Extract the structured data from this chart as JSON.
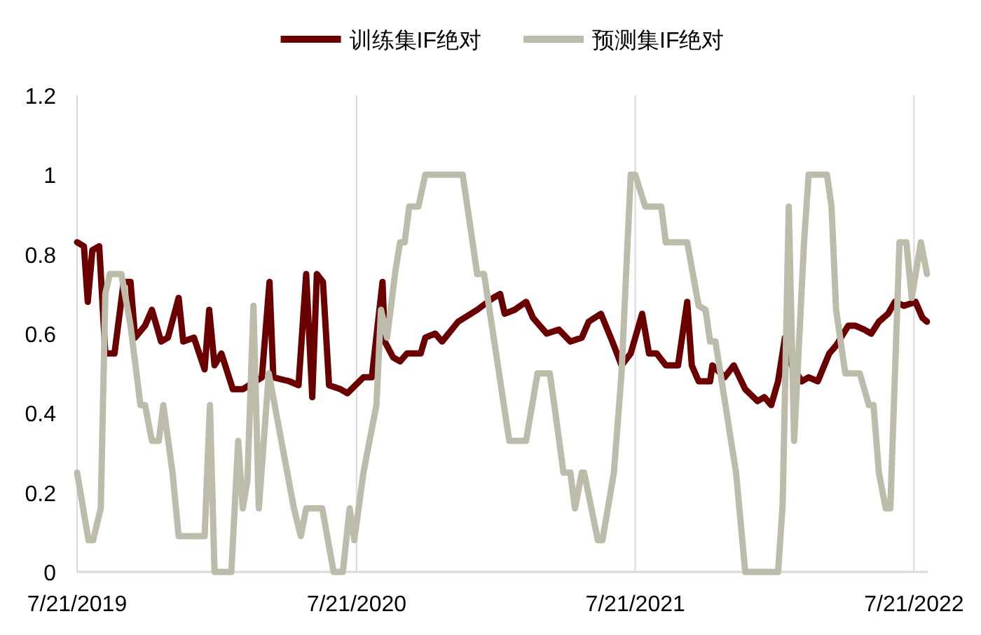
{
  "chart_data": {
    "type": "line",
    "legend": "top",
    "grid": "x",
    "marker": "none",
    "line_style": "solid",
    "xlim": [
      "2019-07-21",
      "2022-08-08"
    ],
    "xticks": [
      {
        "value": "2019-07-21",
        "label": "7/21/2019"
      },
      {
        "value": "2020-07-21",
        "label": "7/21/2020"
      },
      {
        "value": "2021-07-21",
        "label": "7/21/2021"
      },
      {
        "value": "2022-07-21",
        "label": "7/21/2022"
      }
    ],
    "ylim": [
      0,
      1.2
    ],
    "yticks": [
      0,
      0.2,
      0.4,
      0.6,
      0.8,
      1,
      1.2
    ],
    "series": [
      {
        "name": "训练集IF绝对",
        "color": "#6b0000",
        "x": [
          "2019-07-21",
          "2019-07-30",
          "2019-08-04",
          "2019-08-10",
          "2019-08-19",
          "2019-08-27",
          "2019-09-08",
          "2019-09-20",
          "2019-09-29",
          "2019-10-05",
          "2019-10-18",
          "2019-10-27",
          "2019-11-08",
          "2019-11-17",
          "2019-12-01",
          "2019-12-07",
          "2019-12-21",
          "2020-01-04",
          "2020-01-10",
          "2020-01-17",
          "2020-01-26",
          "2020-02-10",
          "2020-02-23",
          "2020-03-19",
          "2020-03-29",
          "2020-04-03",
          "2020-04-24",
          "2020-05-06",
          "2020-05-16",
          "2020-05-24",
          "2020-05-30",
          "2020-06-07",
          "2020-06-15",
          "2020-06-30",
          "2020-07-09",
          "2020-07-30",
          "2020-08-10",
          "2020-08-24",
          "2020-08-27",
          "2020-09-07",
          "2020-09-16",
          "2020-09-25",
          "2020-10-13",
          "2020-10-19",
          "2020-11-01",
          "2020-11-10",
          "2020-12-01",
          "2020-12-26",
          "2021-01-16",
          "2021-01-25",
          "2021-01-31",
          "2021-02-13",
          "2021-02-28",
          "2021-03-09",
          "2021-03-27",
          "2021-04-12",
          "2021-04-27",
          "2021-05-12",
          "2021-05-21",
          "2021-06-06",
          "2021-06-21",
          "2021-07-03",
          "2021-07-15",
          "2021-07-30",
          "2021-08-08",
          "2021-08-18",
          "2021-08-30",
          "2021-09-15",
          "2021-09-27",
          "2021-10-03",
          "2021-10-12",
          "2021-10-27",
          "2021-10-30",
          "2021-11-15",
          "2021-11-27",
          "2021-12-12",
          "2021-12-28",
          "2022-01-06",
          "2022-01-15",
          "2022-01-24",
          "2022-02-02",
          "2022-02-11",
          "2022-02-24",
          "2022-03-05",
          "2022-03-17",
          "2022-04-01",
          "2022-04-10",
          "2022-04-26",
          "2022-05-05",
          "2022-05-17",
          "2022-05-26",
          "2022-06-05",
          "2022-06-17",
          "2022-06-26",
          "2022-07-08",
          "2022-07-23",
          "2022-08-01",
          "2022-08-07"
        ],
        "values": [
          0.83,
          0.82,
          0.68,
          0.81,
          0.82,
          0.55,
          0.55,
          0.73,
          0.73,
          0.59,
          0.62,
          0.66,
          0.58,
          0.59,
          0.69,
          0.58,
          0.59,
          0.51,
          0.66,
          0.52,
          0.55,
          0.46,
          0.46,
          0.49,
          0.73,
          0.49,
          0.48,
          0.47,
          0.75,
          0.44,
          0.75,
          0.73,
          0.47,
          0.46,
          0.45,
          0.49,
          0.49,
          0.73,
          0.58,
          0.54,
          0.53,
          0.55,
          0.55,
          0.59,
          0.6,
          0.58,
          0.63,
          0.66,
          0.69,
          0.7,
          0.65,
          0.66,
          0.68,
          0.64,
          0.6,
          0.61,
          0.58,
          0.59,
          0.63,
          0.65,
          0.58,
          0.52,
          0.55,
          0.65,
          0.55,
          0.55,
          0.52,
          0.52,
          0.68,
          0.52,
          0.48,
          0.48,
          0.52,
          0.49,
          0.52,
          0.46,
          0.43,
          0.44,
          0.42,
          0.48,
          0.59,
          0.52,
          0.48,
          0.49,
          0.48,
          0.55,
          0.57,
          0.62,
          0.62,
          0.61,
          0.6,
          0.63,
          0.65,
          0.68,
          0.67,
          0.68,
          0.64,
          0.63
        ]
      },
      {
        "name": "预测集IF绝对",
        "color": "#bdbcaa",
        "x": [
          "2019-07-21",
          "2019-08-05",
          "2019-08-11",
          "2019-08-21",
          "2019-08-27",
          "2019-09-02",
          "2019-09-17",
          "2019-09-29",
          "2019-10-12",
          "2019-10-18",
          "2019-10-27",
          "2019-11-05",
          "2019-11-11",
          "2019-11-23",
          "2019-12-01",
          "2020-01-04",
          "2020-01-11",
          "2020-01-17",
          "2020-02-08",
          "2020-02-17",
          "2020-02-23",
          "2020-02-29",
          "2020-03-08",
          "2020-03-15",
          "2020-03-28",
          "2020-04-30",
          "2020-05-09",
          "2020-05-16",
          "2020-06-06",
          "2020-06-21",
          "2020-07-03",
          "2020-07-12",
          "2020-07-18",
          "2020-07-30",
          "2020-08-16",
          "2020-08-22",
          "2020-08-30",
          "2020-09-10",
          "2020-09-16",
          "2020-09-22",
          "2020-09-28",
          "2020-10-10",
          "2020-10-19",
          "2020-12-07",
          "2020-12-26",
          "2021-01-04",
          "2021-02-06",
          "2021-02-28",
          "2021-03-15",
          "2021-03-31",
          "2021-04-06",
          "2021-04-18",
          "2021-04-27",
          "2021-05-03",
          "2021-05-12",
          "2021-05-15",
          "2021-06-02",
          "2021-06-08",
          "2021-06-23",
          "2021-07-03",
          "2021-07-15",
          "2021-07-21",
          "2021-08-03",
          "2021-08-24",
          "2021-08-30",
          "2021-09-27",
          "2021-10-12",
          "2021-10-21",
          "2021-10-27",
          "2021-11-03",
          "2021-11-30",
          "2021-12-12",
          "2022-01-24",
          "2022-01-30",
          "2022-02-07",
          "2022-02-14",
          "2022-02-27",
          "2022-03-05",
          "2022-03-29",
          "2022-04-04",
          "2022-04-10",
          "2022-04-22",
          "2022-05-11",
          "2022-05-23",
          "2022-05-29",
          "2022-06-05",
          "2022-06-14",
          "2022-06-20",
          "2022-07-02",
          "2022-07-11",
          "2022-07-18",
          "2022-07-30",
          "2022-08-07"
        ],
        "values": [
          0.25,
          0.08,
          0.08,
          0.16,
          0.7,
          0.75,
          0.75,
          0.62,
          0.42,
          0.42,
          0.33,
          0.33,
          0.42,
          0.25,
          0.09,
          0.09,
          0.42,
          0,
          0,
          0.33,
          0.16,
          0.23,
          0.67,
          0.16,
          0.5,
          0.16,
          0.09,
          0.16,
          0.16,
          0,
          0,
          0.16,
          0.08,
          0.25,
          0.42,
          0.66,
          0.59,
          0.76,
          0.83,
          0.83,
          0.92,
          0.92,
          1,
          1,
          0.75,
          0.75,
          0.33,
          0.33,
          0.5,
          0.5,
          0.42,
          0.25,
          0.25,
          0.16,
          0.25,
          0.25,
          0.08,
          0.08,
          0.25,
          0.5,
          1,
          1,
          0.92,
          0.92,
          0.83,
          0.83,
          0.67,
          0.66,
          0.58,
          0.58,
          0.25,
          0,
          0,
          0.17,
          0.92,
          0.33,
          0.83,
          1,
          1,
          0.92,
          0.66,
          0.5,
          0.5,
          0.42,
          0.42,
          0.25,
          0.16,
          0.16,
          0.83,
          0.83,
          0.69,
          0.83,
          0.75
        ]
      }
    ]
  }
}
